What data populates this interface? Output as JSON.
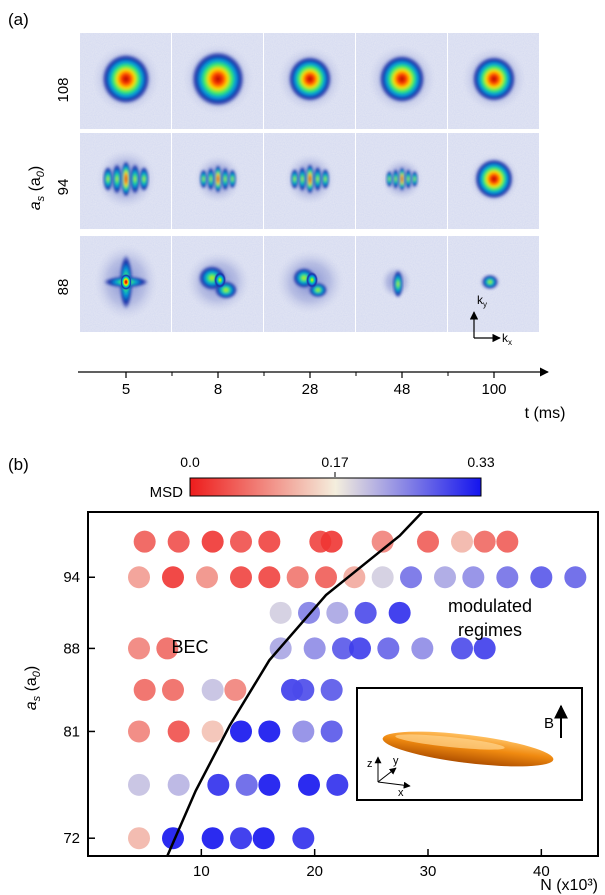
{
  "panel_a": {
    "label": "(a)",
    "ylabel_sym": "a",
    "ylabel_sub": "s",
    "ylabel_unit": " (a",
    "ylabel_unit_sub": "0",
    "ylabel_close": ")",
    "rows": [
      {
        "as": "108",
        "frames": [
          {
            "type": "round",
            "spread": 1.0,
            "core": 1.0
          },
          {
            "type": "round",
            "spread": 1.05,
            "core": 1.1
          },
          {
            "type": "round",
            "spread": 0.95,
            "core": 0.9
          },
          {
            "type": "round",
            "spread": 1.0,
            "core": 0.95
          },
          {
            "type": "round",
            "spread": 0.95,
            "core": 0.9
          }
        ]
      },
      {
        "as": "94",
        "frames": [
          {
            "type": "fringe",
            "spread": 1.0,
            "core": 0.9
          },
          {
            "type": "fringe",
            "spread": 0.8,
            "core": 0.7
          },
          {
            "type": "fringe",
            "spread": 0.85,
            "core": 0.75
          },
          {
            "type": "fringe",
            "spread": 0.7,
            "core": 0.6
          },
          {
            "type": "round",
            "spread": 0.75,
            "core": 0.8
          }
        ]
      },
      {
        "as": "88",
        "frames": [
          {
            "type": "cross",
            "spread": 1.0,
            "core": 0.8
          },
          {
            "type": "blob",
            "spread": 0.95,
            "core": 0.6
          },
          {
            "type": "blob",
            "spread": 1.0,
            "core": 0.45
          },
          {
            "type": "stripe",
            "spread": 0.6,
            "core": 0.4
          },
          {
            "type": "dot",
            "spread": 0.5,
            "core": 0.35
          }
        ]
      }
    ],
    "times": [
      "5",
      "8",
      "28",
      "48",
      "100"
    ],
    "xlabel": "t (ms)",
    "kx": "k",
    "kx_sub": "x",
    "ky": "k",
    "ky_sub": "y"
  },
  "panel_b": {
    "label": "(b)",
    "colorbar": {
      "title": "MSD",
      "ticks": [
        "0.0",
        "0.17",
        "0.33"
      ],
      "colors": {
        "low": "#ee1c1c",
        "mid": "#f4eedd",
        "high": "#1414ee"
      }
    },
    "text_bec": "BEC",
    "text_mod1": "modulated",
    "text_mod2": "regimes",
    "inset": {
      "field_label": "B",
      "axis_x": "x",
      "axis_y": "y",
      "axis_z": "z"
    }
  },
  "chart_data": {
    "type": "scatter",
    "xlabel": "N (x10³)",
    "ylabel": "a_s (a_0)",
    "xlim": [
      0,
      45
    ],
    "ylim": [
      70.5,
      99.5
    ],
    "xticks": [
      10,
      20,
      30,
      40
    ],
    "yticks": [
      72,
      81,
      88,
      94
    ],
    "color_metric": "MSD",
    "color_range": [
      0.0,
      0.33
    ],
    "boundary_curve": [
      [
        7.0,
        70.5
      ],
      [
        9.5,
        76.0
      ],
      [
        12.5,
        81.5
      ],
      [
        16.0,
        87.0
      ],
      [
        21.0,
        92.5
      ],
      [
        27.5,
        97.5
      ],
      [
        29.5,
        99.5
      ]
    ],
    "points": [
      {
        "x": 5.0,
        "y": 97.0,
        "msd": 0.05
      },
      {
        "x": 8.0,
        "y": 97.0,
        "msd": 0.04
      },
      {
        "x": 11.0,
        "y": 97.0,
        "msd": 0.02
      },
      {
        "x": 13.5,
        "y": 97.0,
        "msd": 0.04
      },
      {
        "x": 16.0,
        "y": 97.0,
        "msd": 0.03
      },
      {
        "x": 20.5,
        "y": 97.0,
        "msd": 0.03
      },
      {
        "x": 21.5,
        "y": 97.0,
        "msd": 0.02
      },
      {
        "x": 26.0,
        "y": 97.0,
        "msd": 0.08
      },
      {
        "x": 30.0,
        "y": 97.0,
        "msd": 0.05
      },
      {
        "x": 33.0,
        "y": 97.0,
        "msd": 0.12
      },
      {
        "x": 35.0,
        "y": 97.0,
        "msd": 0.06
      },
      {
        "x": 37.0,
        "y": 97.0,
        "msd": 0.05
      },
      {
        "x": 4.5,
        "y": 94.0,
        "msd": 0.1
      },
      {
        "x": 7.5,
        "y": 94.0,
        "msd": 0.02
      },
      {
        "x": 10.5,
        "y": 94.0,
        "msd": 0.09
      },
      {
        "x": 13.5,
        "y": 94.0,
        "msd": 0.03
      },
      {
        "x": 16.0,
        "y": 94.0,
        "msd": 0.03
      },
      {
        "x": 18.5,
        "y": 94.0,
        "msd": 0.07
      },
      {
        "x": 21.0,
        "y": 94.0,
        "msd": 0.05
      },
      {
        "x": 23.5,
        "y": 94.0,
        "msd": 0.11
      },
      {
        "x": 26.0,
        "y": 94.0,
        "msd": 0.19
      },
      {
        "x": 28.5,
        "y": 94.0,
        "msd": 0.26
      },
      {
        "x": 31.5,
        "y": 94.0,
        "msd": 0.22
      },
      {
        "x": 34.0,
        "y": 94.0,
        "msd": 0.24
      },
      {
        "x": 37.0,
        "y": 94.0,
        "msd": 0.26
      },
      {
        "x": 40.0,
        "y": 94.0,
        "msd": 0.28
      },
      {
        "x": 43.0,
        "y": 94.0,
        "msd": 0.27
      },
      {
        "x": 17.0,
        "y": 91.0,
        "msd": 0.19
      },
      {
        "x": 19.5,
        "y": 91.0,
        "msd": 0.25
      },
      {
        "x": 22.0,
        "y": 91.0,
        "msd": 0.22
      },
      {
        "x": 24.5,
        "y": 91.0,
        "msd": 0.29
      },
      {
        "x": 27.5,
        "y": 91.0,
        "msd": 0.31
      },
      {
        "x": 4.5,
        "y": 88.0,
        "msd": 0.08
      },
      {
        "x": 7.0,
        "y": 88.0,
        "msd": 0.06
      },
      {
        "x": 17.0,
        "y": 88.0,
        "msd": 0.22
      },
      {
        "x": 20.0,
        "y": 88.0,
        "msd": 0.24
      },
      {
        "x": 22.5,
        "y": 88.0,
        "msd": 0.28
      },
      {
        "x": 24.0,
        "y": 88.0,
        "msd": 0.3
      },
      {
        "x": 26.5,
        "y": 88.0,
        "msd": 0.27
      },
      {
        "x": 29.5,
        "y": 88.0,
        "msd": 0.24
      },
      {
        "x": 33.0,
        "y": 88.0,
        "msd": 0.29
      },
      {
        "x": 35.0,
        "y": 88.0,
        "msd": 0.3
      },
      {
        "x": 5.0,
        "y": 84.5,
        "msd": 0.06
      },
      {
        "x": 7.5,
        "y": 84.5,
        "msd": 0.06
      },
      {
        "x": 11.0,
        "y": 84.5,
        "msd": 0.2
      },
      {
        "x": 13.0,
        "y": 84.5,
        "msd": 0.08
      },
      {
        "x": 18.0,
        "y": 84.5,
        "msd": 0.3
      },
      {
        "x": 19.0,
        "y": 84.5,
        "msd": 0.29
      },
      {
        "x": 21.5,
        "y": 84.5,
        "msd": 0.28
      },
      {
        "x": 4.5,
        "y": 81.0,
        "msd": 0.08
      },
      {
        "x": 8.0,
        "y": 81.0,
        "msd": 0.04
      },
      {
        "x": 11.0,
        "y": 81.0,
        "msd": 0.13
      },
      {
        "x": 13.5,
        "y": 81.0,
        "msd": 0.33
      },
      {
        "x": 16.0,
        "y": 81.0,
        "msd": 0.33
      },
      {
        "x": 19.0,
        "y": 81.0,
        "msd": 0.24
      },
      {
        "x": 21.5,
        "y": 81.0,
        "msd": 0.28
      },
      {
        "x": 4.5,
        "y": 76.5,
        "msd": 0.2
      },
      {
        "x": 8.0,
        "y": 76.5,
        "msd": 0.21
      },
      {
        "x": 11.5,
        "y": 76.5,
        "msd": 0.31
      },
      {
        "x": 14.0,
        "y": 76.5,
        "msd": 0.27
      },
      {
        "x": 16.0,
        "y": 76.5,
        "msd": 0.33
      },
      {
        "x": 19.5,
        "y": 76.5,
        "msd": 0.33
      },
      {
        "x": 22.0,
        "y": 76.5,
        "msd": 0.31
      },
      {
        "x": 4.5,
        "y": 72.0,
        "msd": 0.12
      },
      {
        "x": 7.5,
        "y": 72.0,
        "msd": 0.33
      },
      {
        "x": 11.0,
        "y": 72.0,
        "msd": 0.33
      },
      {
        "x": 13.5,
        "y": 72.0,
        "msd": 0.31
      },
      {
        "x": 15.5,
        "y": 72.0,
        "msd": 0.33
      },
      {
        "x": 19.0,
        "y": 72.0,
        "msd": 0.31
      }
    ]
  }
}
